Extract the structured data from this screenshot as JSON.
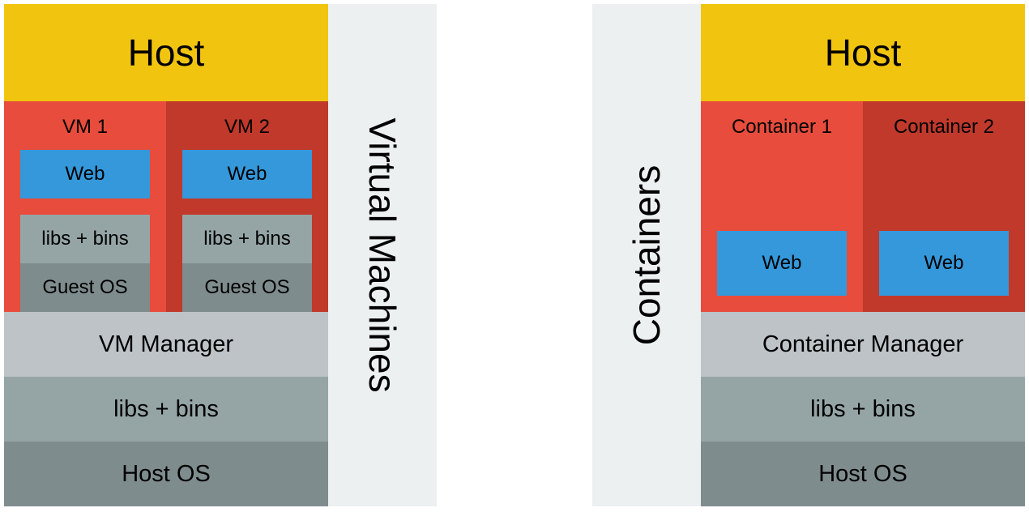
{
  "colors": {
    "host": "#f1c40f",
    "vm1": "#e74c3c",
    "vm2": "#c0392b",
    "web": "#3498db",
    "libs": "#95a5a6",
    "guest_os": "#7f8c8d",
    "manager": "#bdc3c7",
    "host_os": "#7f8c8d",
    "side": "#ecf0f1"
  },
  "vm_diagram": {
    "title": "Host",
    "side_label": "Virtual Machines",
    "vm1": {
      "label": "VM 1",
      "web": "Web",
      "libs": "libs + bins",
      "guest_os": "Guest OS"
    },
    "vm2": {
      "label": "VM 2",
      "web": "Web",
      "libs": "libs + bins",
      "guest_os": "Guest OS"
    },
    "manager": "VM Manager",
    "libs": "libs + bins",
    "host_os": "Host OS"
  },
  "container_diagram": {
    "title": "Host",
    "side_label": "Containers",
    "container1": {
      "label": "Container 1",
      "web": "Web"
    },
    "container2": {
      "label": "Container 2",
      "web": "Web"
    },
    "manager": "Container Manager",
    "libs": "libs + bins",
    "host_os": "Host OS"
  }
}
